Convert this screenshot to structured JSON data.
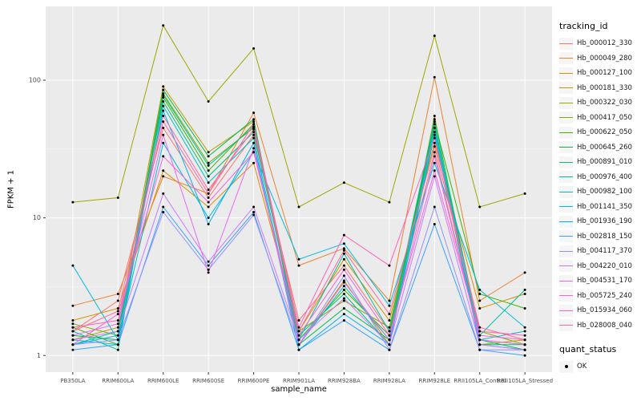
{
  "chart_data": {
    "type": "line",
    "title": "",
    "xlabel": "sample_name",
    "ylabel": "FPKM + 1",
    "y_scale": "log10",
    "yticks": [
      1,
      10,
      100
    ],
    "ylim": [
      1,
      260
    ],
    "legend_title": "tracking_id",
    "legend2": {
      "title": "quant_status",
      "items": [
        "OK"
      ]
    },
    "panel_bg": "#EBEBEB",
    "grid_major_color": "#FFFFFF",
    "grid_minor_color": "#F7F7F7",
    "point_color": "#000000",
    "axis_text_color": "#4D4D4D",
    "categories": [
      "PB350LA",
      "RRIM600LA",
      "RRIM600LE",
      "RRIM600SE",
      "RRIM600PE",
      "RRIM901LA",
      "RRIM928BA",
      "RRIM928LA",
      "RRIM928LE",
      "RRII105LA_Control",
      "RRII105LA_Stressed"
    ],
    "series": [
      {
        "name": "Hb_000012_330",
        "color": "#F8766D",
        "values": [
          1.5,
          2.5,
          45,
          14,
          40,
          1.8,
          4.5,
          1.5,
          30,
          1.3,
          1.2
        ]
      },
      {
        "name": "Hb_000049_280",
        "color": "#EA8331",
        "values": [
          2.3,
          2.8,
          20,
          15,
          58,
          4.5,
          6.0,
          2.5,
          105,
          2.5,
          4.0
        ]
      },
      {
        "name": "Hb_000127_100",
        "color": "#D89000",
        "values": [
          1.8,
          2.2,
          22,
          12,
          25,
          1.5,
          5.0,
          1.8,
          35,
          2.2,
          2.8
        ]
      },
      {
        "name": "Hb_000181_330",
        "color": "#C09B00",
        "values": [
          1.3,
          1.6,
          90,
          30,
          50,
          1.2,
          3.5,
          1.2,
          55,
          1.2,
          1.3
        ]
      },
      {
        "name": "Hb_000322_030",
        "color": "#A3A500",
        "values": [
          13,
          14,
          250,
          70,
          170,
          12,
          18,
          13,
          210,
          12,
          15
        ]
      },
      {
        "name": "Hb_000417_050",
        "color": "#7CAE00",
        "values": [
          1.7,
          1.4,
          80,
          25,
          45,
          1.5,
          2.5,
          1.6,
          45,
          1.5,
          1.2
        ]
      },
      {
        "name": "Hb_000622_050",
        "color": "#39B600",
        "values": [
          1.6,
          1.2,
          75,
          22,
          48,
          1.3,
          3.0,
          1.4,
          50,
          2.8,
          2.2
        ]
      },
      {
        "name": "Hb_000645_260",
        "color": "#00BB4E",
        "values": [
          1.4,
          1.3,
          85,
          28,
          52,
          1.2,
          2.2,
          1.3,
          48,
          1.3,
          1.1
        ]
      },
      {
        "name": "Hb_000891_010",
        "color": "#00BF7D",
        "values": [
          1.2,
          1.5,
          70,
          20,
          42,
          1.4,
          2.8,
          1.2,
          40,
          1.2,
          1.2
        ]
      },
      {
        "name": "Hb_000976_400",
        "color": "#00C1A3",
        "values": [
          1.5,
          1.1,
          78,
          24,
          46,
          1.3,
          5.5,
          1.5,
          52,
          1.4,
          3.0
        ]
      },
      {
        "name": "Hb_000982_100",
        "color": "#00BFC4",
        "values": [
          1.3,
          1.2,
          65,
          18,
          38,
          1.2,
          3.2,
          1.3,
          45,
          1.3,
          1.5
        ]
      },
      {
        "name": "Hb_001141_350",
        "color": "#00BAE0",
        "values": [
          4.5,
          1.3,
          35,
          10,
          30,
          5.0,
          6.5,
          2.3,
          25,
          3.0,
          1.6
        ]
      },
      {
        "name": "Hb_001936_190",
        "color": "#00B0F6",
        "values": [
          1.2,
          1.4,
          60,
          9,
          35,
          1.1,
          2.0,
          1.2,
          42,
          1.2,
          1.1
        ]
      },
      {
        "name": "Hb_002818_150",
        "color": "#35A2FF",
        "values": [
          1.1,
          1.2,
          12,
          4.5,
          11,
          1.1,
          1.8,
          1.1,
          9,
          1.1,
          1.0
        ]
      },
      {
        "name": "Hb_004117_370",
        "color": "#9590FF",
        "values": [
          1.2,
          1.3,
          11,
          4.2,
          10.5,
          1.2,
          3.8,
          1.1,
          12,
          1.1,
          1.1
        ]
      },
      {
        "name": "Hb_004220_010",
        "color": "#C77CFF",
        "values": [
          1.3,
          1.5,
          15,
          4.8,
          12,
          1.3,
          2.6,
          1.2,
          20,
          1.2,
          1.1
        ]
      },
      {
        "name": "Hb_004531_170",
        "color": "#E76BF3",
        "values": [
          1.4,
          1.7,
          40,
          4.0,
          32,
          1.2,
          3.4,
          1.3,
          28,
          1.3,
          1.2
        ]
      },
      {
        "name": "Hb_005725_240",
        "color": "#FA62DB",
        "values": [
          1.2,
          2.0,
          28,
          13,
          30,
          1.4,
          4.2,
          1.4,
          22,
          1.4,
          1.3
        ]
      },
      {
        "name": "Hb_015934_060",
        "color": "#FF62BC",
        "values": [
          1.6,
          1.8,
          50,
          15,
          48,
          1.6,
          7.5,
          4.5,
          38,
          1.5,
          1.4
        ]
      },
      {
        "name": "Hb_028008_040",
        "color": "#FF6A98",
        "values": [
          1.5,
          2.1,
          55,
          16,
          44,
          1.5,
          5.8,
          2.0,
          33,
          1.6,
          1.3
        ]
      }
    ]
  }
}
